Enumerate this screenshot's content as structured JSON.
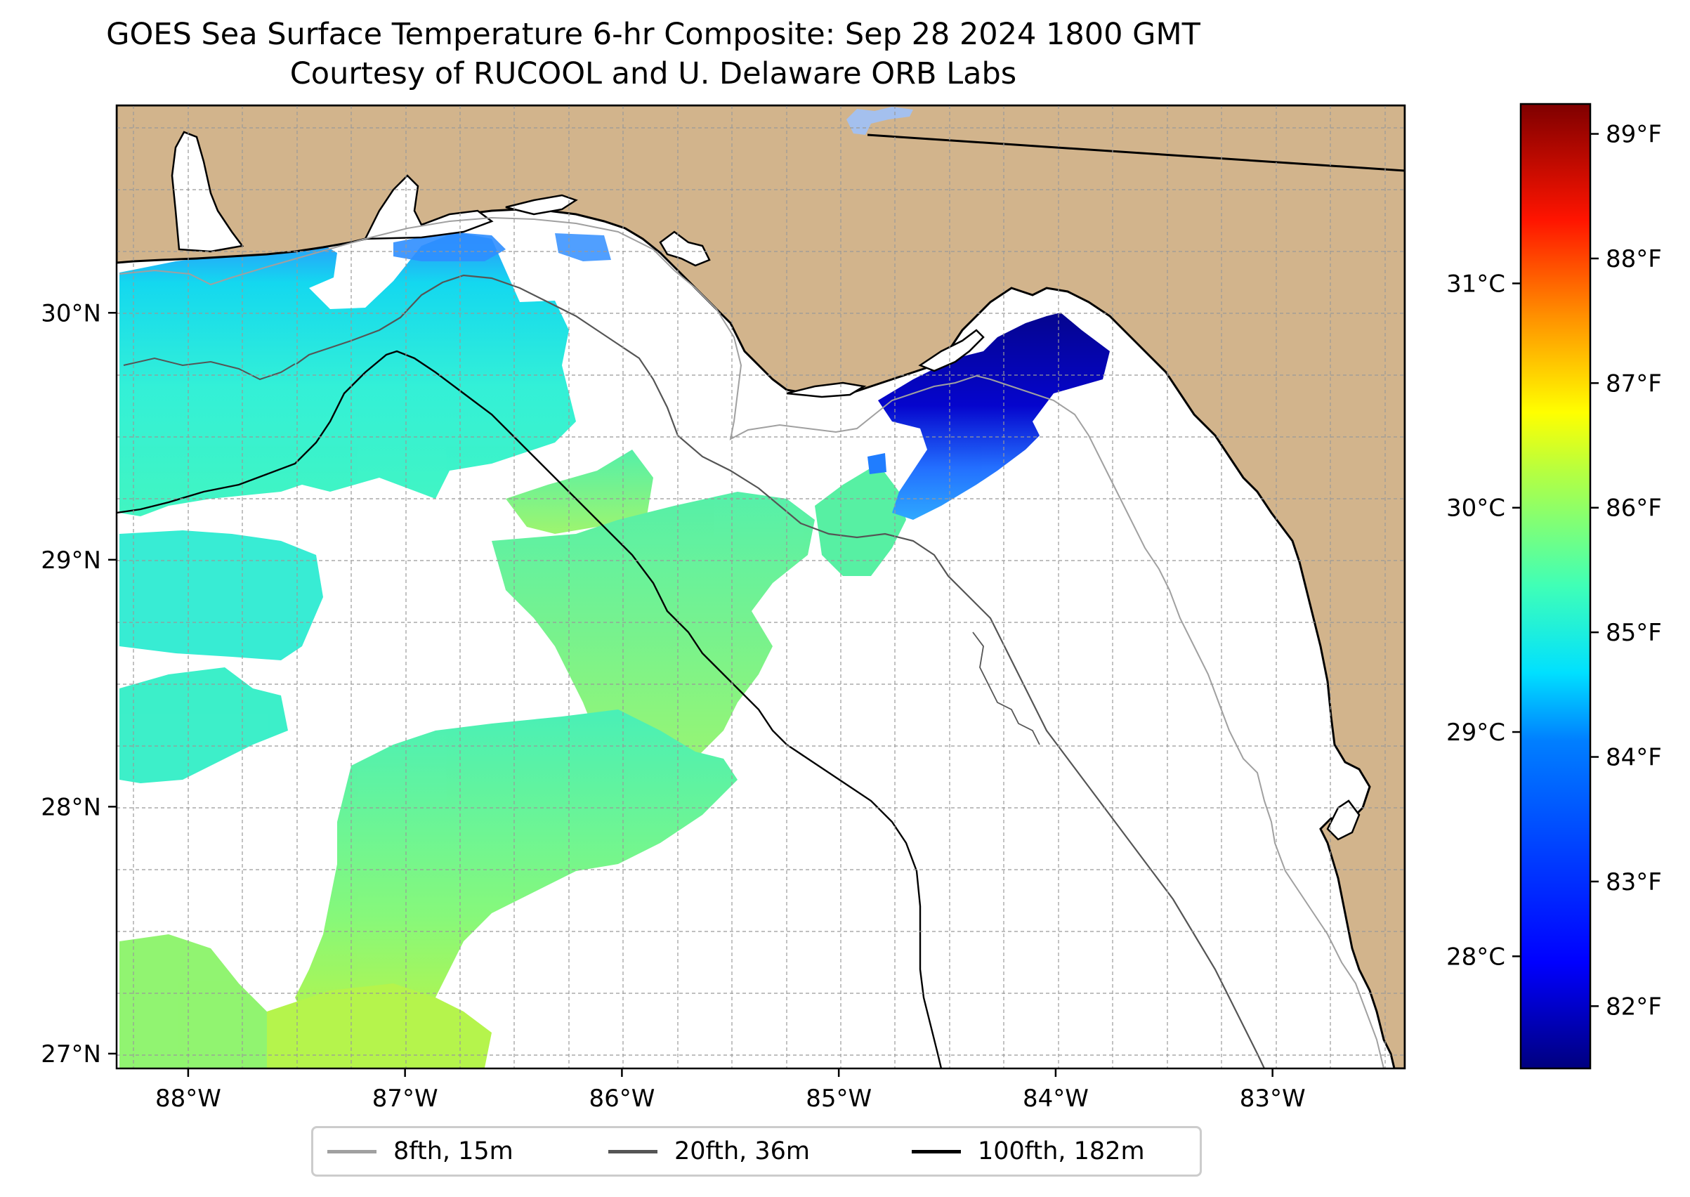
{
  "title": "GOES Sea Surface Temperature 6-hr Composite: Sep 28 2024 1800 GMT",
  "subtitle": "Courtesy of RUCOOL and U. Delaware ORB Labs",
  "map": {
    "extent": {
      "lon_min": -88.33,
      "lon_max": -82.39,
      "lat_min": 26.94,
      "lat_max": 30.84
    },
    "land_color": "#d2b48c",
    "ocean_color": "#ffffff",
    "grid": "on, dashed, 0.25° spacing",
    "lon_ticks": [
      {
        "lon": -88,
        "label": "88°W"
      },
      {
        "lon": -87,
        "label": "87°W"
      },
      {
        "lon": -86,
        "label": "86°W"
      },
      {
        "lon": -85,
        "label": "85°W"
      },
      {
        "lon": -84,
        "label": "84°W"
      },
      {
        "lon": -83,
        "label": "83°W"
      }
    ],
    "lat_ticks": [
      {
        "lat": 30,
        "label": "30°N"
      },
      {
        "lat": 29,
        "label": "29°N"
      },
      {
        "lat": 28,
        "label": "28°N"
      },
      {
        "lat": 27,
        "label": "27°N"
      }
    ],
    "lake_color": "#a4c0ee"
  },
  "colorbar": {
    "colormap": "jet",
    "colors": [
      "#00007f",
      "#0000ff",
      "#007fff",
      "#00ffff",
      "#7fff7f",
      "#ffff00",
      "#ff7f00",
      "#ff0000",
      "#7f0000"
    ],
    "range_c": [
      27.5,
      31.8
    ],
    "celsius_ticks": [
      {
        "value": 31,
        "label": "31°C"
      },
      {
        "value": 30,
        "label": "30°C"
      },
      {
        "value": 29,
        "label": "29°C"
      },
      {
        "value": 28,
        "label": "28°C"
      }
    ],
    "fahrenheit_ticks": [
      {
        "value": 89,
        "label": "89°F"
      },
      {
        "value": 88,
        "label": "88°F"
      },
      {
        "value": 87,
        "label": "87°F"
      },
      {
        "value": 86,
        "label": "86°F"
      },
      {
        "value": 85,
        "label": "85°F"
      },
      {
        "value": 84,
        "label": "84°F"
      },
      {
        "value": 83,
        "label": "83°F"
      },
      {
        "value": 82,
        "label": "82°F"
      }
    ]
  },
  "sst_regions": [
    {
      "name": "western-cyan-patch",
      "temp_c": 28.9
    },
    {
      "name": "central-green-band",
      "temp_c": 29.5
    },
    {
      "name": "southern-green-band",
      "temp_c": 29.8
    },
    {
      "name": "big-bend-cold-patch",
      "temp_c": 27.7
    }
  ],
  "legend": {
    "items": [
      {
        "label": "8fth, 15m",
        "color": "#a0a0a0"
      },
      {
        "label": "20fth, 36m",
        "color": "#555555"
      },
      {
        "label": "100fth, 182m",
        "color": "#000000"
      }
    ]
  }
}
